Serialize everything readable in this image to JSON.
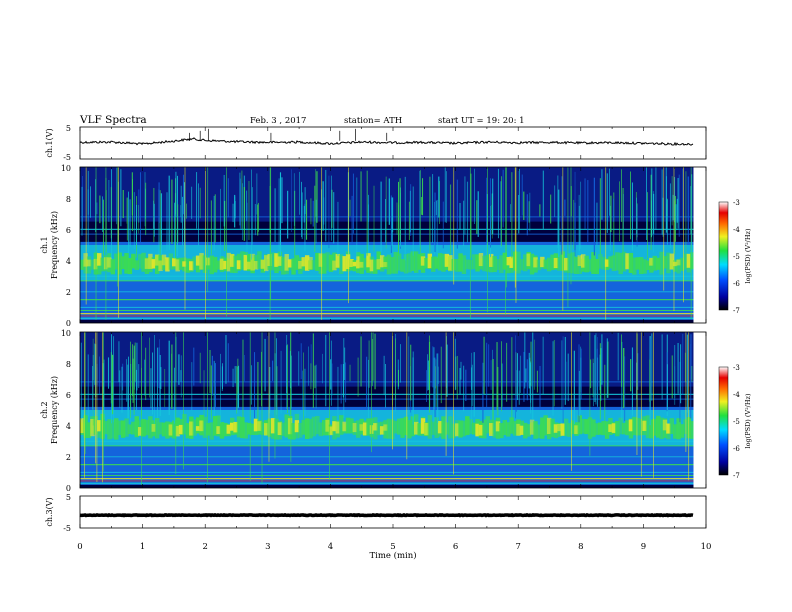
{
  "header": {
    "title": "VLF  Spectra",
    "date": "Feb. 3  , 2017",
    "station": "station= ATH",
    "start": "start  UT  =    19: 20: 1"
  },
  "colorbar_label": "log(PSD) (V²/Hz)",
  "colors": {
    "background": "#00003c",
    "dark_blue": "#0a1e8c",
    "mid_blue": "#1464dc",
    "cyan": "#14c8dc",
    "green": "#3cdc50",
    "yellow": "#e6e628",
    "red": "#e61e1e"
  },
  "chart_data": [
    {
      "type": "line",
      "panel": "ch1",
      "ylabel": "ch.1(V)",
      "ylim": [
        -5,
        5
      ],
      "yticks": [
        "5",
        "-5"
      ],
      "xlim": [
        0,
        10
      ],
      "x": [
        0,
        0.5,
        1,
        1.5,
        1.8,
        2,
        2.5,
        3,
        3.5,
        4,
        4.5,
        5,
        5.5,
        6,
        6.5,
        7,
        7.5,
        8,
        8.5,
        9,
        9.5,
        9.8
      ],
      "y": [
        0.2,
        0.3,
        -0.3,
        0.6,
        1.3,
        0.8,
        0.4,
        0.2,
        0.3,
        -0.2,
        0.3,
        0.1,
        0.2,
        -0.1,
        0.3,
        0.1,
        0.2,
        0.0,
        0.1,
        -0.1,
        -0.3,
        -0.4
      ]
    },
    {
      "type": "heatmap",
      "panel": "ch1-spectrogram",
      "ylabel_top": "ch.1",
      "ylabel": "Frequency  (kHz)",
      "ylim": [
        0,
        10
      ],
      "yticks": [
        "0",
        "2",
        "4",
        "6",
        "8",
        "10"
      ],
      "xlim": [
        0,
        10
      ],
      "band_khz": [
        3,
        5
      ],
      "band_level": -5,
      "colorbar": {
        "min": -7,
        "max": -3,
        "ticks": [
          "-3",
          "-4",
          "-5",
          "-6",
          "-7"
        ]
      }
    },
    {
      "type": "heatmap",
      "panel": "ch2-spectrogram",
      "ylabel_top": "ch.2",
      "ylabel": "Frequency  (kHz)",
      "ylim": [
        0,
        10
      ],
      "yticks": [
        "0",
        "2",
        "4",
        "6",
        "8",
        "10"
      ],
      "xlim": [
        0,
        10
      ],
      "band_khz": [
        3,
        5
      ],
      "band_level": -5,
      "colorbar": {
        "min": -7,
        "max": -3,
        "ticks": [
          "-3",
          "-4",
          "-5",
          "-6",
          "-7"
        ]
      }
    },
    {
      "type": "line",
      "panel": "ch3",
      "ylabel": "ch.3(V)",
      "ylim": [
        -5,
        5
      ],
      "yticks": [
        "5",
        "-5"
      ],
      "xlim": [
        0,
        10
      ],
      "x": [
        0,
        9.8
      ],
      "y": [
        -1,
        -1
      ],
      "xlabel": "Time  (min)",
      "xticks": [
        "0",
        "1",
        "2",
        "3",
        "4",
        "5",
        "6",
        "7",
        "8",
        "9",
        "10"
      ]
    }
  ]
}
